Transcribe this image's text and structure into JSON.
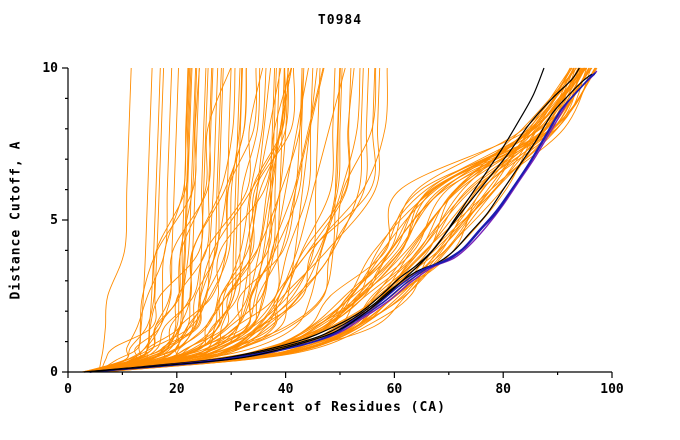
{
  "chart_data": {
    "type": "line",
    "title": "T0984",
    "xlabel": "Percent of Residues (CA)",
    "ylabel": "Distance Cutoff, A",
    "xlim": [
      0,
      100
    ],
    "ylim": [
      0,
      10
    ],
    "x_major_ticks": [
      0,
      20,
      40,
      60,
      80,
      100
    ],
    "x_minor_ticks": [
      10,
      30,
      50,
      70,
      90
    ],
    "y_major_ticks": [
      0,
      5,
      10
    ],
    "y_minor_ticks": [
      1,
      2,
      3,
      4,
      6,
      7,
      8,
      9
    ],
    "grid": false,
    "legend": "none",
    "colors": {
      "ensemble": "#ff8c00",
      "reference": "#000000",
      "highlight_blue": "#1c1cb0",
      "highlight_purple": "#7a22b8",
      "axis": "#000000",
      "background": "#ffffff"
    },
    "series": [
      {
        "name": "black-curve-2",
        "color": "#000000",
        "width": 1.2,
        "points": [
          [
            3,
            0
          ],
          [
            18,
            0.25
          ],
          [
            30,
            0.5
          ],
          [
            42,
            1
          ],
          [
            49,
            1.5
          ],
          [
            54,
            2
          ],
          [
            58,
            2.6
          ],
          [
            61,
            3.1
          ],
          [
            64,
            3.5
          ],
          [
            67,
            4
          ],
          [
            70,
            4.7
          ],
          [
            73,
            5.4
          ],
          [
            77,
            6.3
          ],
          [
            81,
            7.2
          ],
          [
            85,
            8.2
          ],
          [
            89,
            9
          ],
          [
            92.5,
            9.6
          ],
          [
            94,
            10
          ]
        ]
      },
      {
        "name": "black-curve-3",
        "color": "#000000",
        "width": 1.2,
        "points": [
          [
            4,
            0
          ],
          [
            22,
            0.3
          ],
          [
            34,
            0.6
          ],
          [
            45,
            1.1
          ],
          [
            51,
            1.6
          ],
          [
            56,
            2.2
          ],
          [
            60,
            2.8
          ],
          [
            64,
            3.3
          ],
          [
            68,
            3.6
          ],
          [
            71,
            4
          ],
          [
            74,
            4.6
          ],
          [
            77,
            5.2
          ],
          [
            80,
            6
          ],
          [
            83,
            6.8
          ],
          [
            86,
            7.6
          ],
          [
            89,
            8.5
          ],
          [
            92,
            9.1
          ],
          [
            94.5,
            9.55
          ],
          [
            96.3,
            9.8
          ]
        ]
      },
      {
        "name": "purple-curve",
        "color": "#7a22b8",
        "width": 1.4,
        "points": [
          [
            4,
            0
          ],
          [
            25,
            0.35
          ],
          [
            37,
            0.65
          ],
          [
            48,
            1.15
          ],
          [
            54,
            1.75
          ],
          [
            59,
            2.35
          ],
          [
            63,
            2.95
          ],
          [
            67,
            3.45
          ],
          [
            71,
            3.75
          ],
          [
            74,
            4.2
          ],
          [
            77,
            4.8
          ],
          [
            80,
            5.5
          ],
          [
            83,
            6.3
          ],
          [
            86,
            7.1
          ],
          [
            89,
            8
          ],
          [
            92,
            8.9
          ],
          [
            94.5,
            9.4
          ],
          [
            96.5,
            9.75
          ],
          [
            97.2,
            9.9
          ]
        ]
      },
      {
        "name": "blue-curve-2",
        "color": "#1c1cb0",
        "width": 1.5,
        "points": [
          [
            4,
            0
          ],
          [
            23,
            0.3
          ],
          [
            35,
            0.6
          ],
          [
            46,
            1.05
          ],
          [
            52,
            1.65
          ],
          [
            57,
            2.25
          ],
          [
            61,
            2.85
          ],
          [
            65,
            3.35
          ],
          [
            69,
            3.65
          ],
          [
            72.5,
            4.05
          ],
          [
            75.5,
            4.65
          ],
          [
            78.5,
            5.25
          ],
          [
            81.5,
            6.0
          ],
          [
            84.5,
            6.8
          ],
          [
            87.5,
            7.7
          ],
          [
            90.5,
            8.6
          ],
          [
            93.5,
            9.2
          ],
          [
            95.5,
            9.6
          ],
          [
            96.8,
            9.8
          ]
        ]
      },
      {
        "name": "blue-curve-1",
        "color": "#1c1cb0",
        "width": 1.5,
        "points": [
          [
            4,
            0
          ],
          [
            24,
            0.3
          ],
          [
            36,
            0.6
          ],
          [
            47,
            1.1
          ],
          [
            53,
            1.7
          ],
          [
            58,
            2.3
          ],
          [
            62,
            2.9
          ],
          [
            66,
            3.4
          ],
          [
            70,
            3.7
          ],
          [
            73,
            4.1
          ],
          [
            76,
            4.7
          ],
          [
            79,
            5.3
          ],
          [
            82,
            6.1
          ],
          [
            85,
            6.9
          ],
          [
            88,
            7.8
          ],
          [
            91,
            8.7
          ],
          [
            94,
            9.3
          ],
          [
            96,
            9.7
          ],
          [
            97,
            9.85
          ]
        ]
      },
      {
        "name": "black-curve-1",
        "color": "#000000",
        "width": 1.2,
        "points": [
          [
            3,
            0
          ],
          [
            20,
            0.25
          ],
          [
            33,
            0.5
          ],
          [
            44,
            1
          ],
          [
            50,
            1.4
          ],
          [
            55,
            2
          ],
          [
            59,
            2.6
          ],
          [
            62,
            3.1
          ],
          [
            65,
            3.6
          ],
          [
            68,
            4.2
          ],
          [
            71,
            5
          ],
          [
            74,
            5.8
          ],
          [
            77,
            6.6
          ],
          [
            80,
            7.4
          ],
          [
            83,
            8.3
          ],
          [
            85.5,
            9.1
          ],
          [
            87.5,
            10
          ]
        ]
      }
    ],
    "orange_ensemble": {
      "name": "ensemble-models",
      "color": "#ff8c00",
      "width": 0.9,
      "count": 110,
      "seed": 7,
      "anchor_cutoffs": [
        0,
        0.4,
        0.8,
        1.5,
        2.5,
        4,
        6,
        8,
        10
      ],
      "bad_template_x": [
        3,
        5,
        6,
        7,
        8,
        9,
        10,
        11,
        12
      ],
      "good_template_x": [
        4,
        32,
        45,
        55,
        62,
        70,
        79,
        88,
        96
      ],
      "noise": 6
    }
  }
}
